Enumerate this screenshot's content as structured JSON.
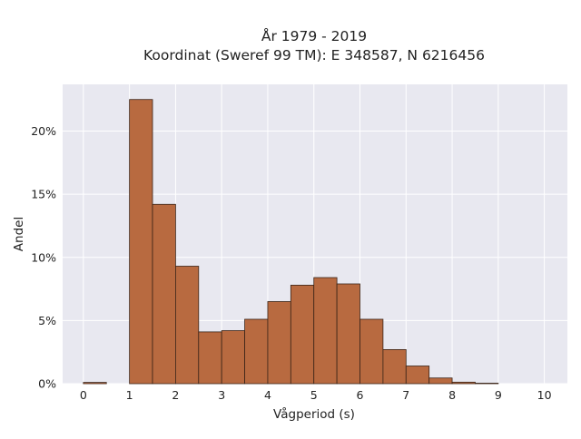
{
  "chart_data": {
    "type": "bar",
    "title_lines": [
      "År 1979 - 2019",
      "Koordinat (Sweref 99 TM): E 348587, N 6216456"
    ],
    "xlabel": "Vågperiod (s)",
    "ylabel": "Andel",
    "xlim": [
      -0.45,
      10.5
    ],
    "ylim": [
      0,
      23.7
    ],
    "x_ticks": [
      0,
      1,
      2,
      3,
      4,
      5,
      6,
      7,
      8,
      9,
      10
    ],
    "y_ticks": [
      0,
      5,
      10,
      15,
      20
    ],
    "y_tick_labels": [
      "0%",
      "5%",
      "10%",
      "15%",
      "20%"
    ],
    "grid": true,
    "bar_width": 0.5,
    "bins": [
      {
        "start": 0.0,
        "value": 0.1
      },
      {
        "start": 0.5,
        "value": 0.0
      },
      {
        "start": 1.0,
        "value": 22.5
      },
      {
        "start": 1.5,
        "value": 14.2
      },
      {
        "start": 2.0,
        "value": 9.3
      },
      {
        "start": 2.5,
        "value": 4.1
      },
      {
        "start": 3.0,
        "value": 4.2
      },
      {
        "start": 3.5,
        "value": 5.1
      },
      {
        "start": 4.0,
        "value": 6.5
      },
      {
        "start": 4.5,
        "value": 7.8
      },
      {
        "start": 5.0,
        "value": 8.4
      },
      {
        "start": 5.5,
        "value": 7.9
      },
      {
        "start": 6.0,
        "value": 5.1
      },
      {
        "start": 6.5,
        "value": 2.7
      },
      {
        "start": 7.0,
        "value": 1.4
      },
      {
        "start": 7.5,
        "value": 0.45
      },
      {
        "start": 8.0,
        "value": 0.12
      },
      {
        "start": 8.5,
        "value": 0.04
      },
      {
        "start": 9.0,
        "value": 0.0
      },
      {
        "start": 9.5,
        "value": 0.0
      }
    ],
    "colors": {
      "bar_fill": "#b86a40",
      "bar_stroke": "#3a2418",
      "plot_background": "#e8e8f0",
      "grid": "#ffffff"
    }
  }
}
